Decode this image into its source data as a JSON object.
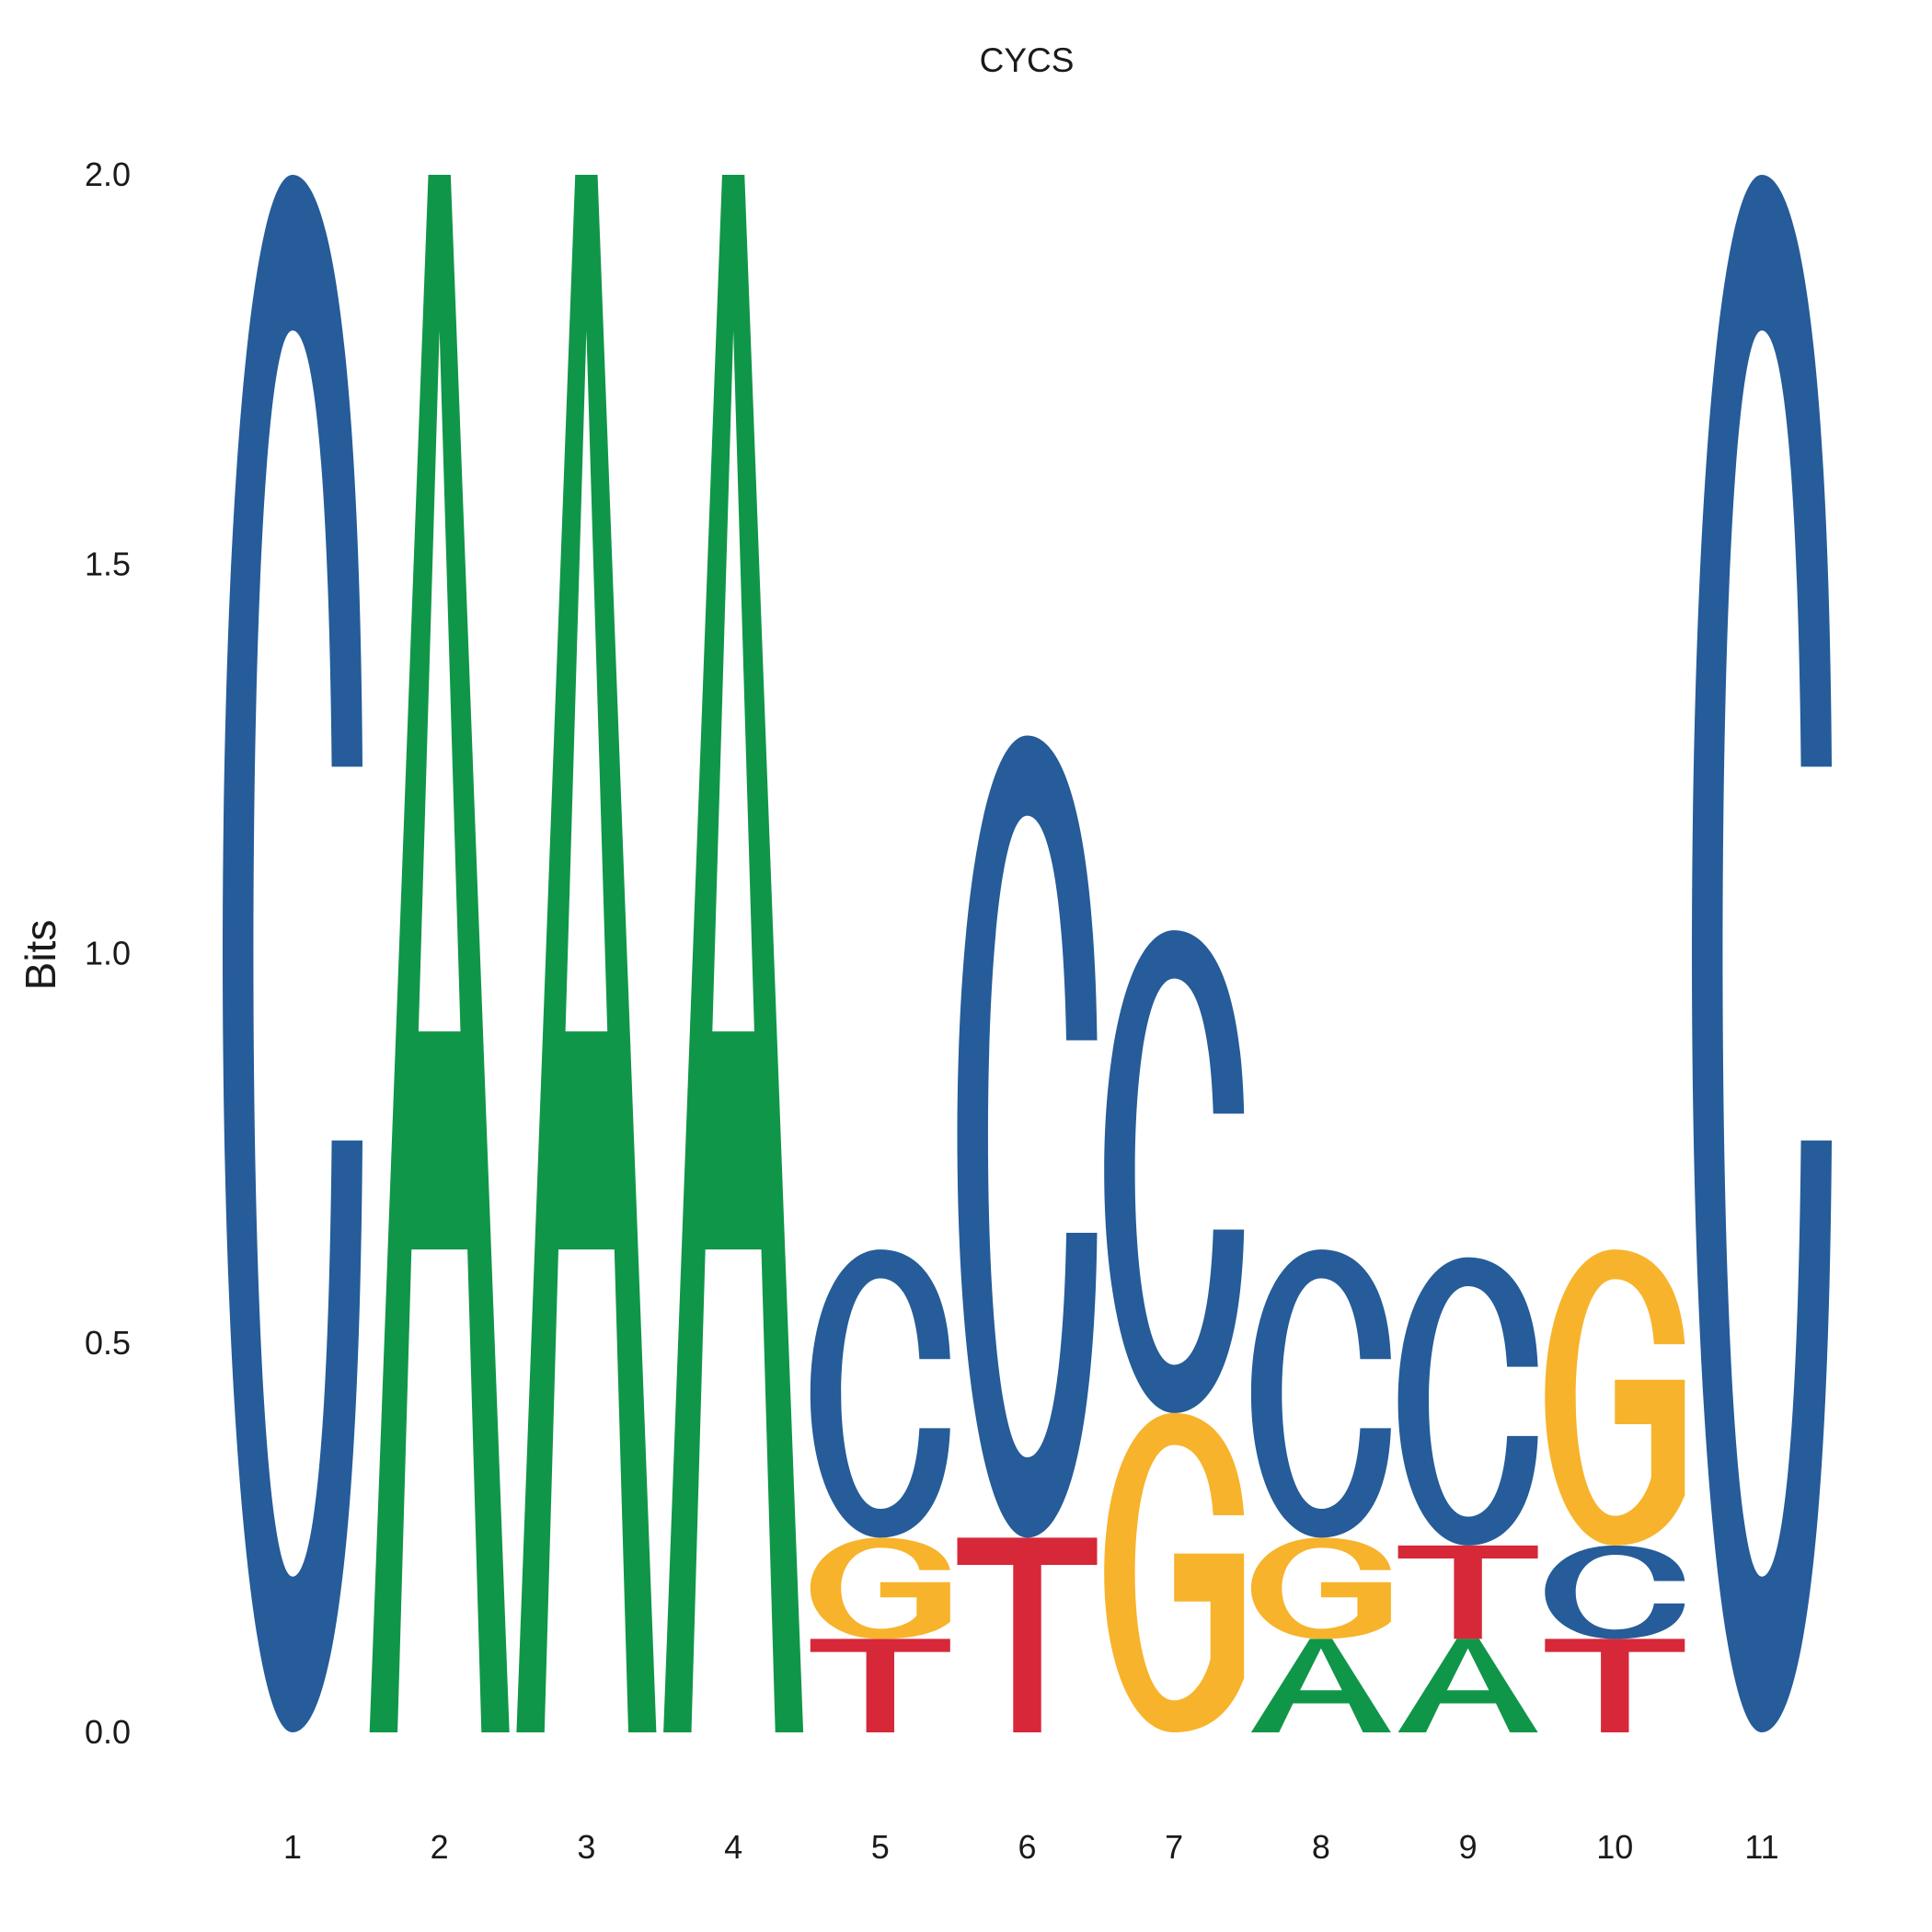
{
  "chart_data": {
    "type": "sequence-logo",
    "title": "CYCS",
    "xlabel": "",
    "ylabel": "Bits",
    "ylim": [
      0,
      2
    ],
    "y_ticks": [
      "0.0",
      "0.5",
      "1.0",
      "1.5",
      "2.0"
    ],
    "positions": [
      "1",
      "2",
      "3",
      "4",
      "5",
      "6",
      "7",
      "8",
      "9",
      "10",
      "11"
    ],
    "grid": false,
    "colors": {
      "A": "#109648",
      "C": "#255C99",
      "G": "#F7B32B",
      "T": "#D62839"
    },
    "stacks": [
      [
        {
          "letter": "C",
          "bits": 2.0
        }
      ],
      [
        {
          "letter": "A",
          "bits": 2.0
        }
      ],
      [
        {
          "letter": "A",
          "bits": 2.0
        }
      ],
      [
        {
          "letter": "A",
          "bits": 2.0
        }
      ],
      [
        {
          "letter": "T",
          "bits": 0.12
        },
        {
          "letter": "G",
          "bits": 0.13
        },
        {
          "letter": "C",
          "bits": 0.37
        }
      ],
      [
        {
          "letter": "T",
          "bits": 0.25
        },
        {
          "letter": "C",
          "bits": 1.03
        }
      ],
      [
        {
          "letter": "G",
          "bits": 0.41
        },
        {
          "letter": "C",
          "bits": 0.62
        }
      ],
      [
        {
          "letter": "A",
          "bits": 0.12
        },
        {
          "letter": "G",
          "bits": 0.13
        },
        {
          "letter": "C",
          "bits": 0.37
        }
      ],
      [
        {
          "letter": "A",
          "bits": 0.12
        },
        {
          "letter": "T",
          "bits": 0.12
        },
        {
          "letter": "C",
          "bits": 0.37
        }
      ],
      [
        {
          "letter": "T",
          "bits": 0.12
        },
        {
          "letter": "C",
          "bits": 0.12
        },
        {
          "letter": "G",
          "bits": 0.38
        }
      ],
      [
        {
          "letter": "C",
          "bits": 2.0
        }
      ]
    ]
  }
}
